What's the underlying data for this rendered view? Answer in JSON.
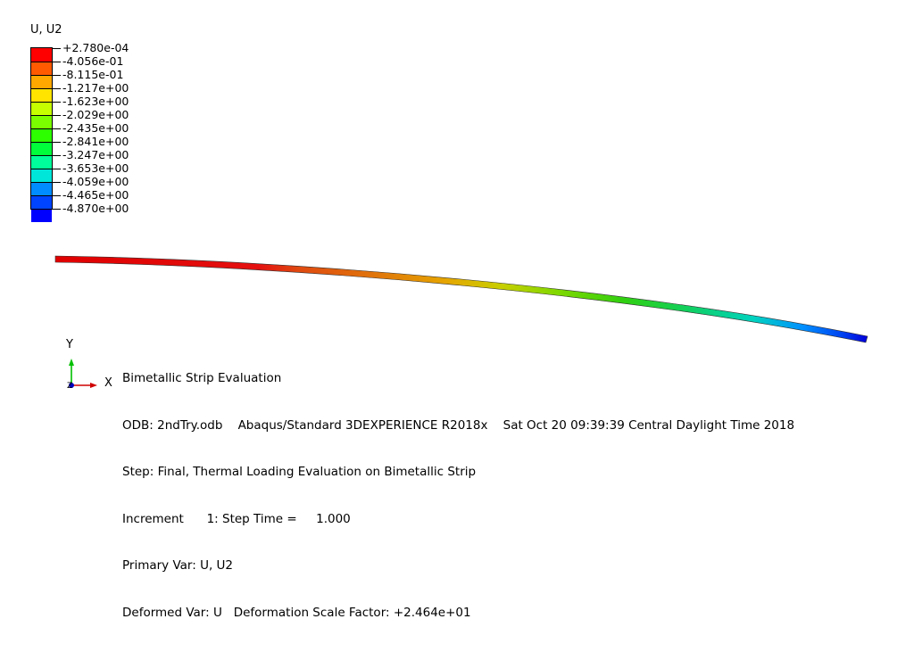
{
  "legend": {
    "title": "U, U2",
    "ticks": [
      "+2.780e-04",
      "-4.056e-01",
      "-8.115e-01",
      "-1.217e+00",
      "-1.623e+00",
      "-2.029e+00",
      "-2.435e+00",
      "-2.841e+00",
      "-3.247e+00",
      "-3.653e+00",
      "-4.059e+00",
      "-4.465e+00",
      "-4.870e+00"
    ],
    "colors": [
      "#ff0000",
      "#ff5a00",
      "#ffa800",
      "#ffe400",
      "#c5ff00",
      "#7bff00",
      "#2dff00",
      "#00ff3a",
      "#00ff9a",
      "#00e6d8",
      "#008cff",
      "#0044ff",
      "#0000ff"
    ]
  },
  "triad": {
    "y_label": "Y",
    "x_label": "X",
    "y_axis_color": "#00c000",
    "x_axis_color": "#d00000",
    "z_dot_color": "#0000c0"
  },
  "info": {
    "title": "Bimetallic Strip Evaluation",
    "odb_line": "ODB: 2ndTry.odb    Abaqus/Standard 3DEXPERIENCE R2018x    Sat Oct 20 09:39:39 Central Daylight Time 2018",
    "step_line": "Step: Final, Thermal Loading Evaluation on Bimetallic Strip",
    "increment_line": "Increment      1: Step Time =     1.000",
    "primary_var_line": "Primary Var: U, U2",
    "deformed_var_line": "Deformed Var: U   Deformation Scale Factor: +2.464e+01"
  }
}
